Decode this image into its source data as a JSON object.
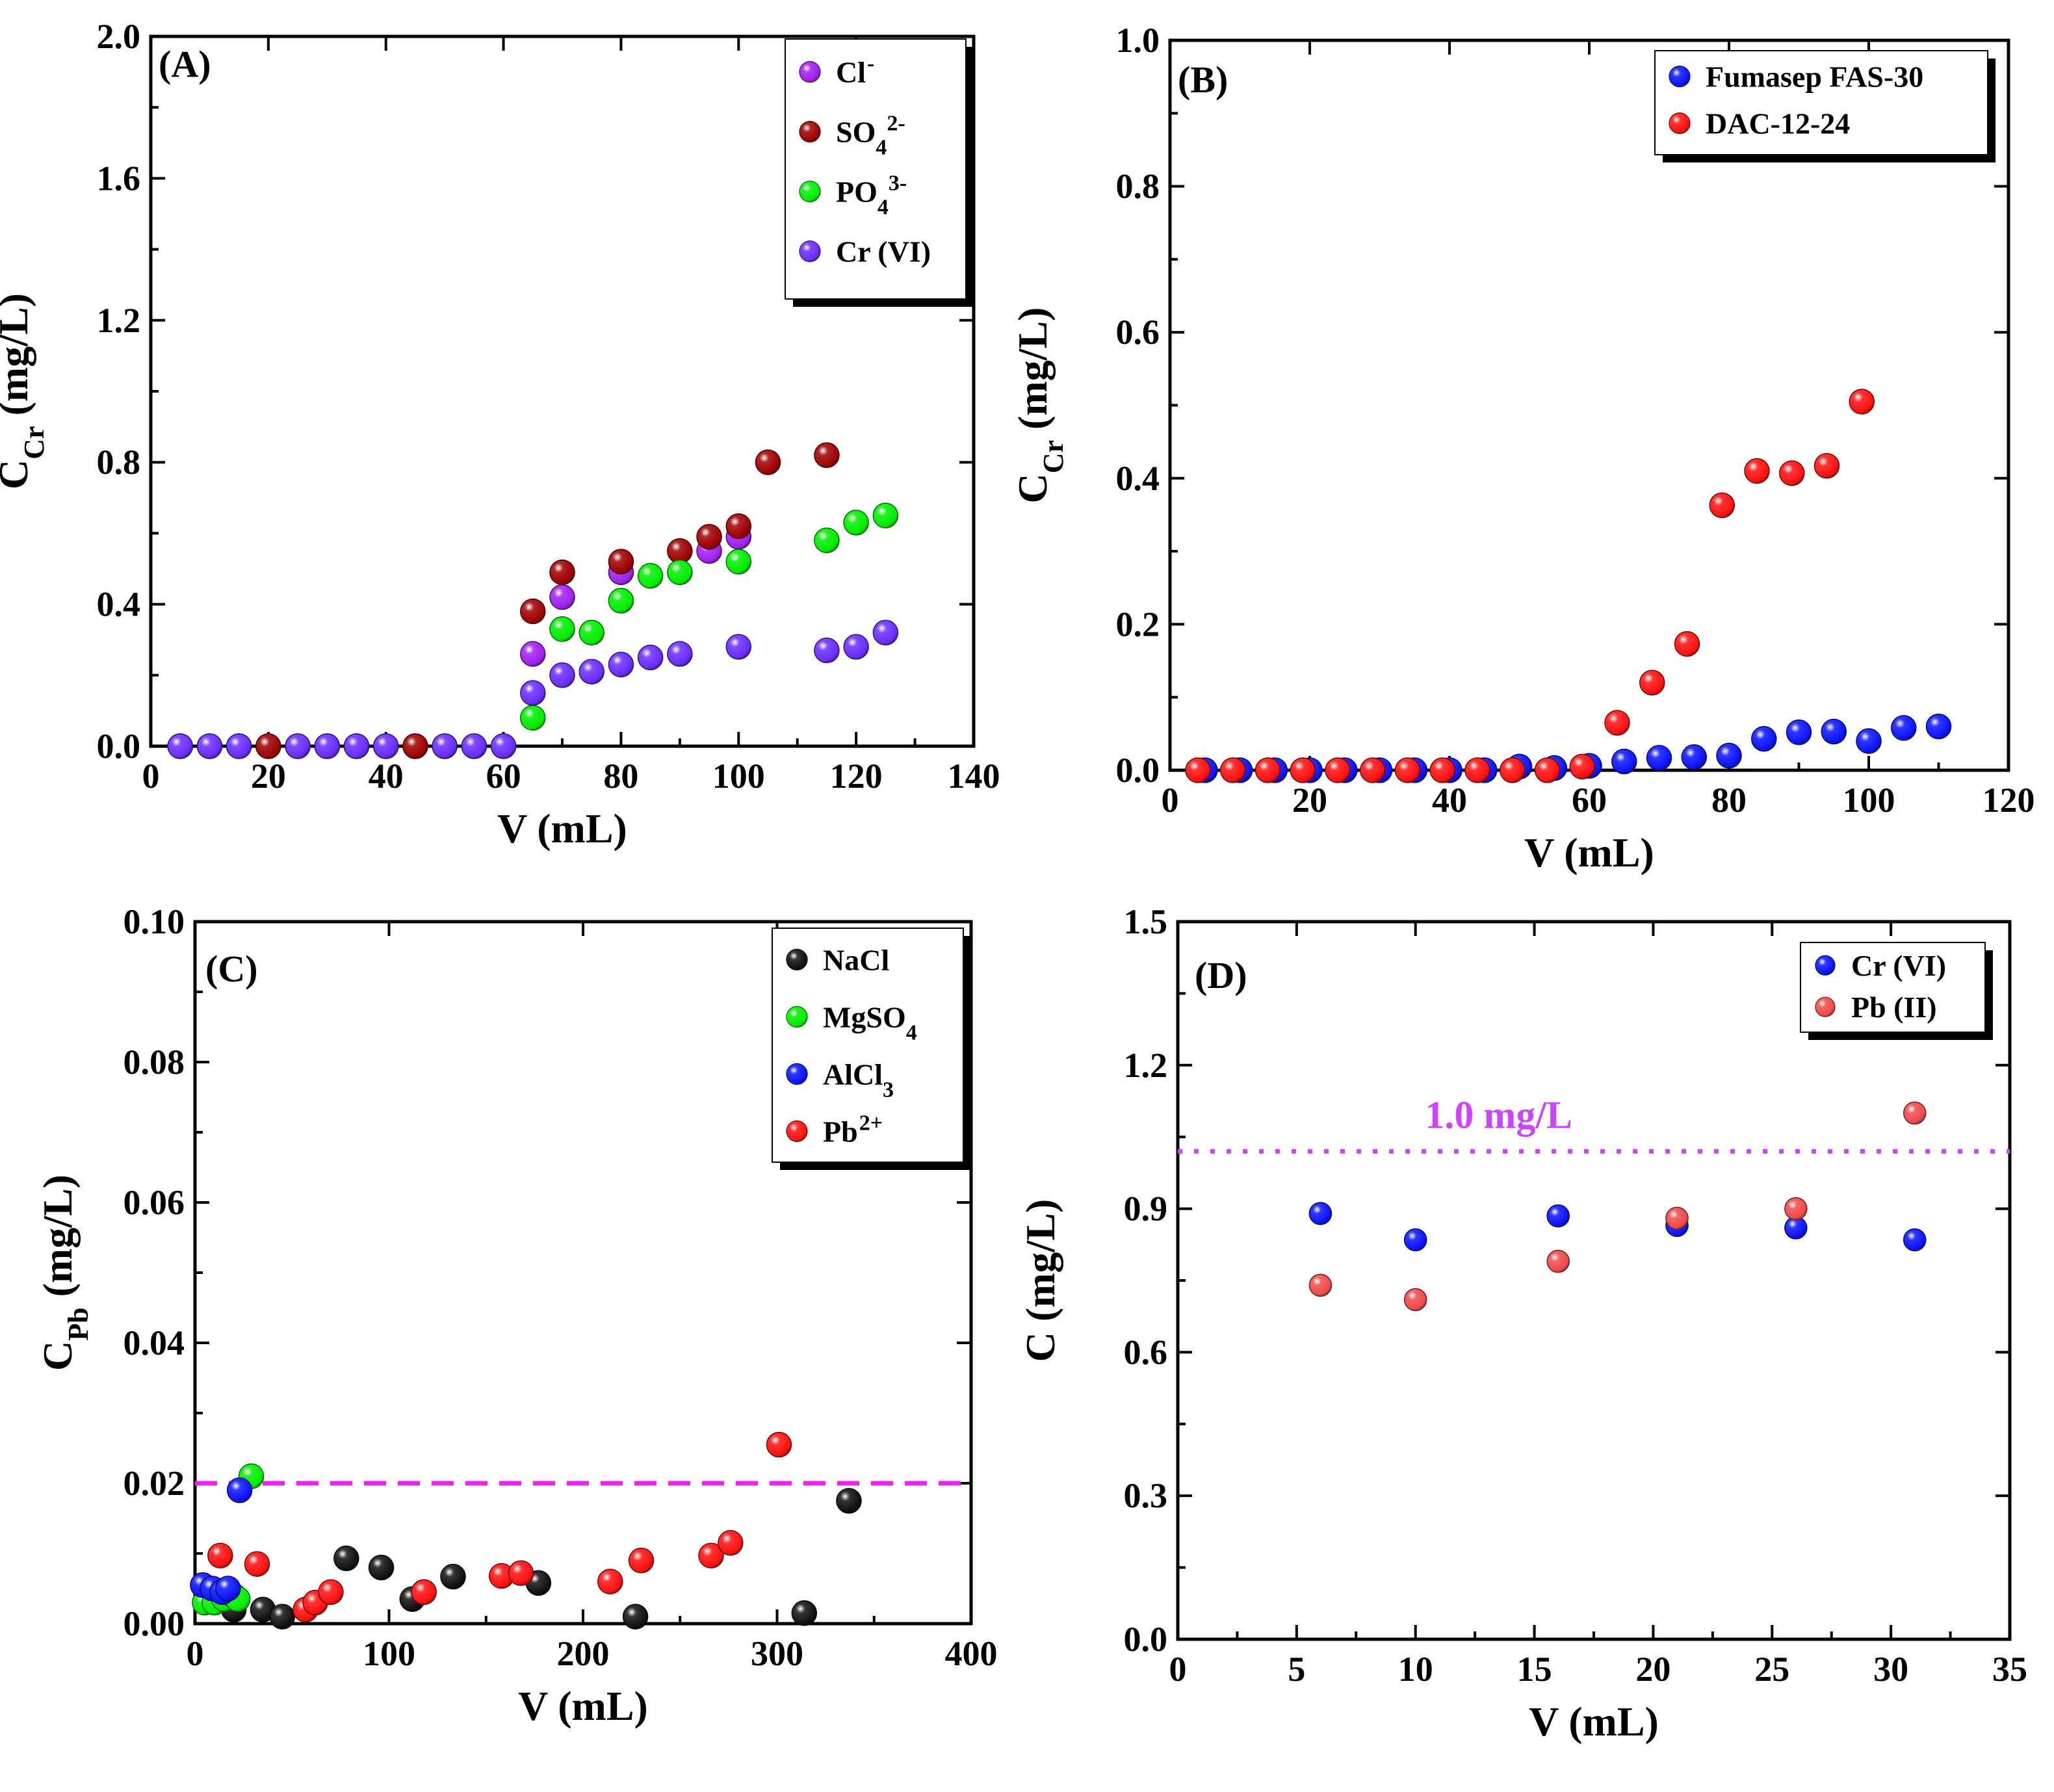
{
  "chart_data": [
    {
      "panel": "(A)",
      "type": "scatter",
      "xlabel": "V (mL)",
      "ylabel": {
        "main": "C",
        "sub": "Cr",
        "rest": " (mg/L)"
      },
      "xlim": [
        0,
        140
      ],
      "ylim": [
        0,
        2.0
      ],
      "xticks": [
        "0",
        "20",
        "40",
        "60",
        "80",
        "100",
        "120",
        "140"
      ],
      "yticks": [
        "0.0",
        "0.4",
        "0.8",
        "1.2",
        "1.6",
        "2.0"
      ],
      "legend_position": "top-right",
      "series": [
        {
          "name": "Cl",
          "sup": "-",
          "color": "#a020f0",
          "points": [
            [
              5,
              0
            ],
            [
              10,
              0
            ],
            [
              15,
              0
            ],
            [
              20,
              0
            ],
            [
              25,
              0
            ],
            [
              30,
              0
            ],
            [
              35,
              0
            ],
            [
              40,
              0
            ],
            [
              45,
              0
            ],
            [
              50,
              0
            ],
            [
              55,
              0
            ],
            [
              60,
              0
            ],
            [
              65,
              0.26
            ],
            [
              70,
              0.42
            ],
            [
              80,
              0.49
            ],
            [
              95,
              0.55
            ],
            [
              100,
              0.59
            ]
          ]
        },
        {
          "name": "SO",
          "sub": "4",
          "sup": "2-",
          "color": "#a00000",
          "points": [
            [
              20,
              0
            ],
            [
              45,
              0
            ],
            [
              65,
              0.38
            ],
            [
              70,
              0.49
            ],
            [
              80,
              0.52
            ],
            [
              90,
              0.55
            ],
            [
              95,
              0.59
            ],
            [
              100,
              0.62
            ],
            [
              105,
              0.8
            ],
            [
              115,
              0.82
            ]
          ]
        },
        {
          "name": "PO",
          "sub": "4",
          "sup": "3-",
          "color": "#00ee00",
          "points": [
            [
              65,
              0.08
            ],
            [
              70,
              0.33
            ],
            [
              75,
              0.32
            ],
            [
              80,
              0.41
            ],
            [
              85,
              0.48
            ],
            [
              90,
              0.49
            ],
            [
              100,
              0.52
            ],
            [
              115,
              0.58
            ],
            [
              120,
              0.63
            ],
            [
              125,
              0.65
            ]
          ]
        },
        {
          "name": "Cr (VI)",
          "color": "#6a2cff",
          "points": [
            [
              5,
              0
            ],
            [
              10,
              0
            ],
            [
              15,
              0
            ],
            [
              25,
              0
            ],
            [
              30,
              0
            ],
            [
              35,
              0
            ],
            [
              40,
              0
            ],
            [
              50,
              0
            ],
            [
              55,
              0
            ],
            [
              60,
              0
            ],
            [
              65,
              0.15
            ],
            [
              70,
              0.2
            ],
            [
              75,
              0.21
            ],
            [
              80,
              0.23
            ],
            [
              85,
              0.25
            ],
            [
              90,
              0.26
            ],
            [
              100,
              0.28
            ],
            [
              115,
              0.27
            ],
            [
              120,
              0.28
            ],
            [
              125,
              0.32
            ]
          ]
        }
      ]
    },
    {
      "panel": "(B)",
      "type": "scatter",
      "xlabel": "V (mL)",
      "ylabel": {
        "main": "C",
        "sub": "Cr",
        "rest": " (mg/L)"
      },
      "xlim": [
        0,
        120
      ],
      "ylim": [
        0,
        1.0
      ],
      "xticks": [
        "0",
        "20",
        "40",
        "60",
        "80",
        "100",
        "120"
      ],
      "yticks": [
        "0.0",
        "0.2",
        "0.4",
        "0.6",
        "0.8",
        "1.0"
      ],
      "legend_position": "top-right",
      "series": [
        {
          "name": "Fumasep FAS-30",
          "color": "#0a14ff",
          "points": [
            [
              5,
              0
            ],
            [
              10,
              0
            ],
            [
              15,
              0
            ],
            [
              20,
              0
            ],
            [
              25,
              0
            ],
            [
              30,
              0
            ],
            [
              35,
              0
            ],
            [
              40,
              0
            ],
            [
              45,
              0
            ],
            [
              50,
              0.005
            ],
            [
              55,
              0.003
            ],
            [
              60,
              0.006
            ],
            [
              65,
              0.012
            ],
            [
              70,
              0.017
            ],
            [
              75,
              0.018
            ],
            [
              80,
              0.02
            ],
            [
              85,
              0.043
            ],
            [
              90,
              0.052
            ],
            [
              95,
              0.053
            ],
            [
              100,
              0.04
            ],
            [
              105,
              0.058
            ],
            [
              110,
              0.06
            ]
          ]
        },
        {
          "name": "DAC-12-24",
          "color": "#ff1010",
          "points": [
            [
              4,
              0
            ],
            [
              9,
              0
            ],
            [
              14,
              0
            ],
            [
              19,
              0
            ],
            [
              24,
              0
            ],
            [
              29,
              0
            ],
            [
              34,
              0
            ],
            [
              39,
              0
            ],
            [
              44,
              0
            ],
            [
              49,
              0
            ],
            [
              54,
              0
            ],
            [
              59,
              0.005
            ],
            [
              64,
              0.065
            ],
            [
              69,
              0.12
            ],
            [
              74,
              0.173
            ],
            [
              79,
              0.363
            ],
            [
              84,
              0.41
            ],
            [
              89,
              0.407
            ],
            [
              94,
              0.417
            ],
            [
              99,
              0.505
            ]
          ]
        }
      ]
    },
    {
      "panel": "(C)",
      "type": "scatter",
      "xlabel": "V (mL)",
      "ylabel": {
        "main": "C",
        "sub": "Pb",
        "rest": " (mg/L)"
      },
      "xlim": [
        0,
        400
      ],
      "ylim": [
        0,
        0.1
      ],
      "xticks": [
        "0",
        "100",
        "200",
        "300",
        "400"
      ],
      "yticks": [
        "0.00",
        "0.02",
        "0.04",
        "0.06",
        "0.08",
        "0.10"
      ],
      "legend_position": "top-right",
      "reference_line": {
        "y": 0.02,
        "color": "#ee22ee",
        "style": "dashed"
      },
      "series": [
        {
          "name": "NaCl",
          "color": "#111111",
          "points": [
            [
              20,
              0.002
            ],
            [
              35,
              0.002
            ],
            [
              45,
              0.001
            ],
            [
              78,
              0.0093
            ],
            [
              96,
              0.008
            ],
            [
              112,
              0.0035
            ],
            [
              133,
              0.0067
            ],
            [
              177,
              0.0058
            ],
            [
              227,
              0.001
            ],
            [
              314,
              0.0015
            ],
            [
              337,
              0.0175
            ]
          ]
        },
        {
          "name": "MgSO",
          "sub": "4",
          "color": "#00ee00",
          "points": [
            [
              5,
              0.003
            ],
            [
              10,
              0.003
            ],
            [
              15,
              0.0035
            ],
            [
              20,
              0.004
            ],
            [
              22,
              0.0035
            ],
            [
              29,
              0.021
            ]
          ]
        },
        {
          "name": "AlCl",
          "sub": "3",
          "color": "#0a14ff",
          "points": [
            [
              4,
              0.0055
            ],
            [
              9,
              0.005
            ],
            [
              14,
              0.0045
            ],
            [
              17,
              0.005
            ],
            [
              23,
              0.019
            ]
          ]
        },
        {
          "name": "Pb",
          "sup": "2+",
          "color": "#ff1010",
          "points": [
            [
              13,
              0.0097
            ],
            [
              32,
              0.0085
            ],
            [
              57,
              0.002
            ],
            [
              62,
              0.003
            ],
            [
              70,
              0.0045
            ],
            [
              118,
              0.0045
            ],
            [
              158,
              0.0068
            ],
            [
              168,
              0.0072
            ],
            [
              214,
              0.006
            ],
            [
              230,
              0.009
            ],
            [
              266,
              0.0097
            ],
            [
              276,
              0.0115
            ],
            [
              301,
              0.0255
            ]
          ]
        }
      ]
    },
    {
      "panel": "(D)",
      "type": "scatter",
      "xlabel": "V (mL)",
      "ylabel": {
        "main": "C (mg/L)",
        "sub": "",
        "rest": ""
      },
      "xlim": [
        0,
        35
      ],
      "ylim": [
        0,
        1.5
      ],
      "xticks": [
        "0",
        "5",
        "10",
        "15",
        "20",
        "25",
        "30",
        "35"
      ],
      "yticks": [
        "0.0",
        "0.3",
        "0.6",
        "0.9",
        "1.2",
        "1.5"
      ],
      "legend_position": "top-right",
      "reference_line": {
        "y": 1.02,
        "color": "#cc44ff",
        "style": "dotted",
        "label": "1.0 mg/L"
      },
      "series": [
        {
          "name": "Cr (VI)",
          "color": "#0a14ff",
          "points": [
            [
              6,
              0.89
            ],
            [
              10,
              0.835
            ],
            [
              16,
              0.885
            ],
            [
              21,
              0.865
            ],
            [
              26,
              0.86
            ],
            [
              31,
              0.835
            ]
          ]
        },
        {
          "name": "Pb (II)",
          "color": "#f04a4a",
          "points": [
            [
              6,
              0.74
            ],
            [
              10,
              0.71
            ],
            [
              16,
              0.79
            ],
            [
              21,
              0.88
            ],
            [
              26,
              0.9
            ],
            [
              31,
              1.1
            ]
          ]
        }
      ]
    }
  ]
}
